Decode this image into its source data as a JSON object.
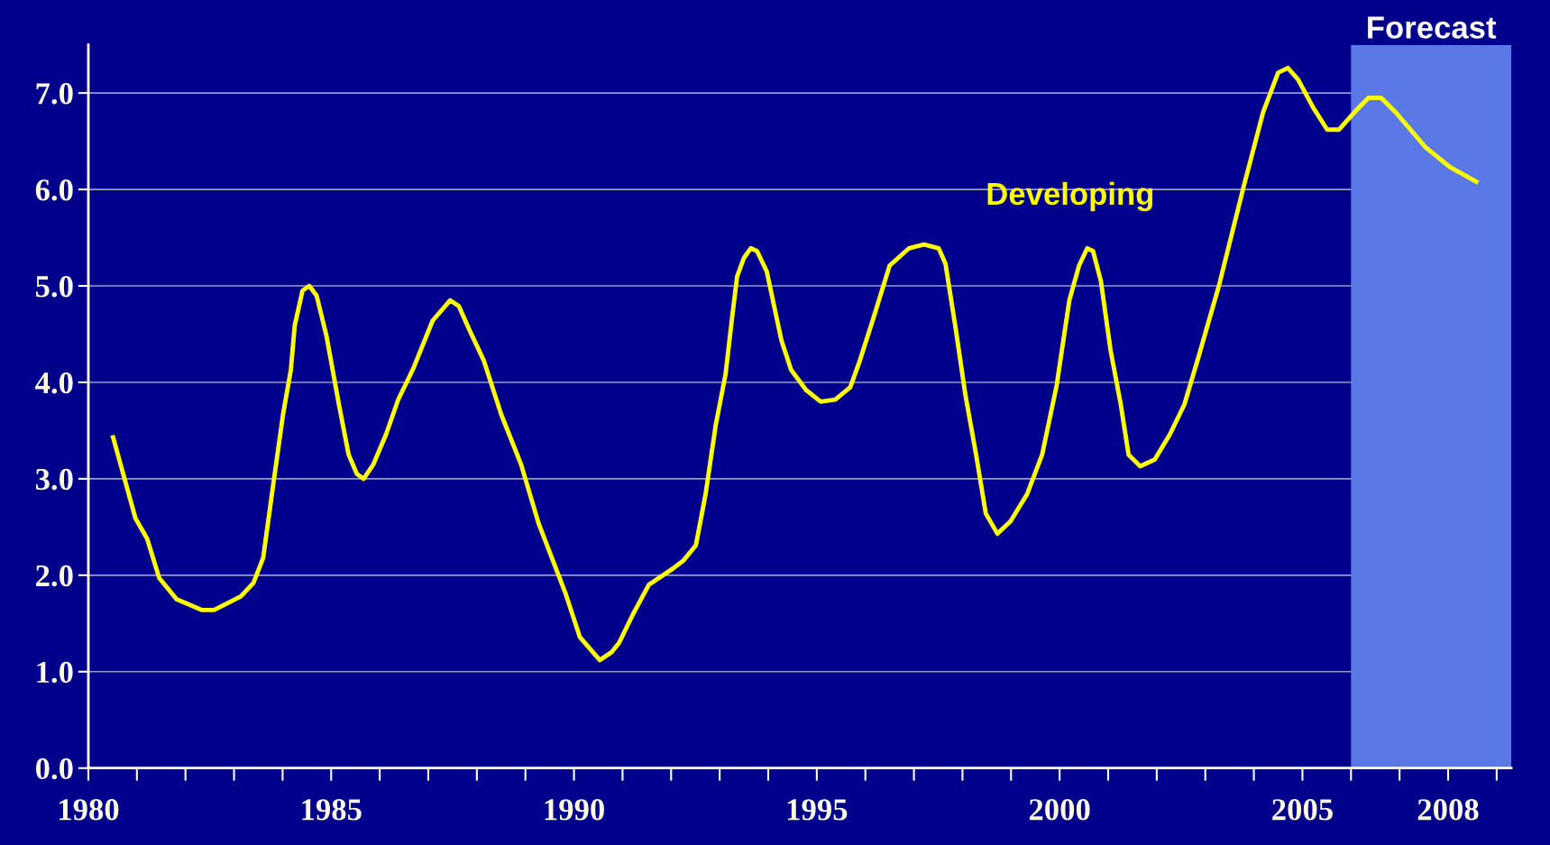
{
  "chart_data": {
    "type": "line",
    "x": [
      1980.51,
      1980.97,
      1981.21,
      1981.46,
      1981.82,
      1982.33,
      1982.59,
      1983.14,
      1983.4,
      1983.6,
      1983.81,
      1984.01,
      1984.17,
      1984.25,
      1984.41,
      1984.55,
      1984.7,
      1984.9,
      1985.16,
      1985.36,
      1985.53,
      1985.67,
      1985.87,
      1986.13,
      1986.38,
      1986.68,
      1987.09,
      1987.45,
      1987.63,
      1987.85,
      1988.14,
      1988.5,
      1988.91,
      1989.27,
      1989.82,
      1990.12,
      1990.53,
      1990.77,
      1990.93,
      1991.23,
      1991.54,
      1992.04,
      1992.25,
      1992.51,
      1992.71,
      1992.92,
      1993.12,
      1993.26,
      1993.36,
      1993.5,
      1993.64,
      1993.77,
      1993.97,
      1994.27,
      1994.47,
      1994.78,
      1995.08,
      1995.38,
      1995.69,
      1995.89,
      1996.15,
      1996.5,
      1996.9,
      1997.21,
      1997.51,
      1997.65,
      1997.85,
      1998.06,
      1998.28,
      1998.48,
      1998.72,
      1998.99,
      1999.33,
      1999.64,
      1999.94,
      2000.2,
      2000.4,
      2000.57,
      2000.69,
      2000.85,
      2001.05,
      2001.26,
      2001.42,
      2001.66,
      2001.96,
      2002.27,
      2002.57,
      2002.87,
      2003.28,
      2003.79,
      2004.19,
      2004.5,
      2004.7,
      2004.91,
      2005.22,
      2005.51,
      2005.75,
      2006.07,
      2006.36,
      2006.62,
      2006.92,
      2007.53,
      2008.04,
      2008.58
    ],
    "series": [
      {
        "name": "Developing",
        "color": "#ffff00",
        "values": [
          3.43,
          2.59,
          2.38,
          1.97,
          1.75,
          1.64,
          1.64,
          1.78,
          1.92,
          2.18,
          2.95,
          3.67,
          4.13,
          4.59,
          4.95,
          5.0,
          4.9,
          4.49,
          3.77,
          3.25,
          3.05,
          3.0,
          3.15,
          3.46,
          3.82,
          4.13,
          4.64,
          4.85,
          4.79,
          4.54,
          4.23,
          3.67,
          3.15,
          2.54,
          1.82,
          1.36,
          1.12,
          1.2,
          1.3,
          1.61,
          1.9,
          2.07,
          2.15,
          2.31,
          2.84,
          3.56,
          4.08,
          4.69,
          5.1,
          5.29,
          5.39,
          5.36,
          5.15,
          4.44,
          4.13,
          3.92,
          3.8,
          3.82,
          3.95,
          4.23,
          4.64,
          5.21,
          5.39,
          5.43,
          5.39,
          5.23,
          4.59,
          3.87,
          3.25,
          2.64,
          2.43,
          2.56,
          2.84,
          3.25,
          3.97,
          4.85,
          5.21,
          5.39,
          5.36,
          5.05,
          4.33,
          3.77,
          3.25,
          3.13,
          3.2,
          3.46,
          3.77,
          4.28,
          5.0,
          6.03,
          6.8,
          7.21,
          7.26,
          7.14,
          6.85,
          6.62,
          6.62,
          6.8,
          6.95,
          6.95,
          6.8,
          6.44,
          6.23,
          6.08
        ]
      }
    ],
    "xlim": [
      1980,
      2009.3
    ],
    "xticks": [
      {
        "value": 1980,
        "label": "1980"
      },
      {
        "value": 1981,
        "label": null
      },
      {
        "value": 1982,
        "label": null
      },
      {
        "value": 1983,
        "label": null
      },
      {
        "value": 1984,
        "label": null
      },
      {
        "value": 1986,
        "label": null
      },
      {
        "value": 1987,
        "label": null
      },
      {
        "value": 1988,
        "label": null
      },
      {
        "value": 1989,
        "label": null
      },
      {
        "value": 1991,
        "label": null
      },
      {
        "value": 1992,
        "label": null
      },
      {
        "value": 1993,
        "label": null
      },
      {
        "value": 1994,
        "label": null
      },
      {
        "value": 1996,
        "label": null
      },
      {
        "value": 1997,
        "label": null
      },
      {
        "value": 1998,
        "label": null
      },
      {
        "value": 1999,
        "label": null
      },
      {
        "value": 2001,
        "label": null
      },
      {
        "value": 2002,
        "label": null
      },
      {
        "value": 2003,
        "label": null
      },
      {
        "value": 2004,
        "label": null
      },
      {
        "value": 2006,
        "label": null
      },
      {
        "value": 2007,
        "label": null
      },
      {
        "value": 2009,
        "label": null
      },
      {
        "value": 1985,
        "label": "1985"
      },
      {
        "value": 1990,
        "label": "1990"
      },
      {
        "value": 1995,
        "label": "1995"
      },
      {
        "value": 2000,
        "label": "2000"
      },
      {
        "value": 2005,
        "label": "2005"
      },
      {
        "value": 2008,
        "label": "2008"
      }
    ],
    "ylim": [
      0,
      7.5
    ],
    "yticks": [
      {
        "value": 0,
        "label": "0.0"
      },
      {
        "value": 1,
        "label": "1.0"
      },
      {
        "value": 2,
        "label": "2.0"
      },
      {
        "value": 3,
        "label": "3.0"
      },
      {
        "value": 4,
        "label": "4.0"
      },
      {
        "value": 5,
        "label": "5.0"
      },
      {
        "value": 6,
        "label": "6.0"
      },
      {
        "value": 7,
        "label": "7.0"
      }
    ],
    "bands": [
      {
        "axis": "x",
        "from": 2006,
        "to": 2009.3,
        "label": "Forecast",
        "color": "#5a78e6"
      }
    ],
    "grid": "y",
    "line_style": "solid",
    "marker": "none"
  }
}
